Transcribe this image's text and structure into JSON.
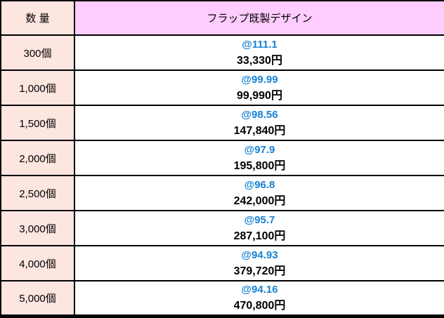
{
  "table": {
    "header": {
      "quantity_label": "数 量",
      "product_label": "フラップ既製デザイン"
    },
    "rows": [
      {
        "quantity": "300個",
        "unit_price": "@111.1",
        "total_price": "33,330円"
      },
      {
        "quantity": "1,000個",
        "unit_price": "@99.99",
        "total_price": "99,990円"
      },
      {
        "quantity": "1,500個",
        "unit_price": "@98.56",
        "total_price": "147,840円"
      },
      {
        "quantity": "2,000個",
        "unit_price": "@97.9",
        "total_price": "195,800円"
      },
      {
        "quantity": "2,500個",
        "unit_price": "@96.8",
        "total_price": "242,000円"
      },
      {
        "quantity": "3,000個",
        "unit_price": "@95.7",
        "total_price": "287,100円"
      },
      {
        "quantity": "4,000個",
        "unit_price": "@94.93",
        "total_price": "379,720円"
      },
      {
        "quantity": "5,000個",
        "unit_price": "@94.16",
        "total_price": "470,800円"
      }
    ],
    "colors": {
      "quantity_bg": "#FDE5E0",
      "header_product_bg": "#FFCCFF",
      "unit_price_text": "#1581D3",
      "total_price_text": "#000000",
      "border": "#000000"
    }
  }
}
